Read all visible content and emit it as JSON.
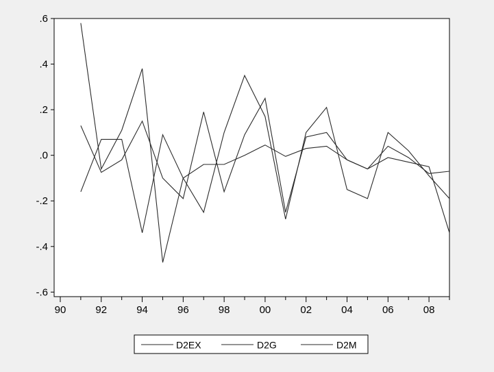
{
  "chart_data": {
    "type": "line",
    "x": [
      1991,
      1992,
      1993,
      1994,
      1995,
      1996,
      1997,
      1998,
      1999,
      2000,
      2001,
      2002,
      2003,
      2004,
      2005,
      2006,
      2007,
      2008,
      2009
    ],
    "x_tick_values": [
      1990,
      1992,
      1994,
      1996,
      1998,
      2000,
      2002,
      2004,
      2006,
      2008
    ],
    "x_tick_labels": [
      "90",
      "92",
      "94",
      "96",
      "98",
      "00",
      "02",
      "04",
      "06",
      "08"
    ],
    "xlim": [
      1989.7,
      2009
    ],
    "y_tick_values": [
      0.6,
      0.4,
      0.2,
      0.0,
      -0.2,
      -0.4,
      -0.6
    ],
    "y_tick_labels": [
      ".6",
      ".4",
      ".2",
      ".0",
      "-.2",
      "-.4",
      "-.6"
    ],
    "ylim": [
      -0.62,
      0.6
    ],
    "grid": false,
    "legend_position": "bottom",
    "colors": {
      "background": "#f0f0f0",
      "plot_area": "#ffffff",
      "line": "#2a2a2a",
      "axis": "#000000"
    },
    "series": [
      {
        "name": "D2EX",
        "values": [
          0.13,
          -0.075,
          -0.02,
          0.15,
          -0.1,
          -0.19,
          0.19,
          -0.16,
          0.09,
          0.25,
          -0.25,
          0.08,
          0.1,
          -0.02,
          -0.06,
          -0.01,
          -0.03,
          -0.05,
          -0.34
        ]
      },
      {
        "name": "D2G",
        "values": [
          -0.16,
          0.07,
          0.07,
          -0.34,
          0.09,
          -0.1,
          -0.25,
          0.1,
          0.35,
          0.17,
          -0.28,
          0.1,
          0.21,
          -0.15,
          -0.19,
          0.1,
          0.02,
          -0.09,
          -0.19
        ]
      },
      {
        "name": "D2M",
        "values": [
          0.58,
          -0.06,
          0.11,
          0.38,
          -0.47,
          -0.1,
          -0.04,
          -0.04,
          0.0,
          0.045,
          -0.005,
          0.03,
          0.04,
          -0.02,
          -0.06,
          0.04,
          -0.01,
          -0.08,
          -0.07
        ]
      }
    ]
  }
}
